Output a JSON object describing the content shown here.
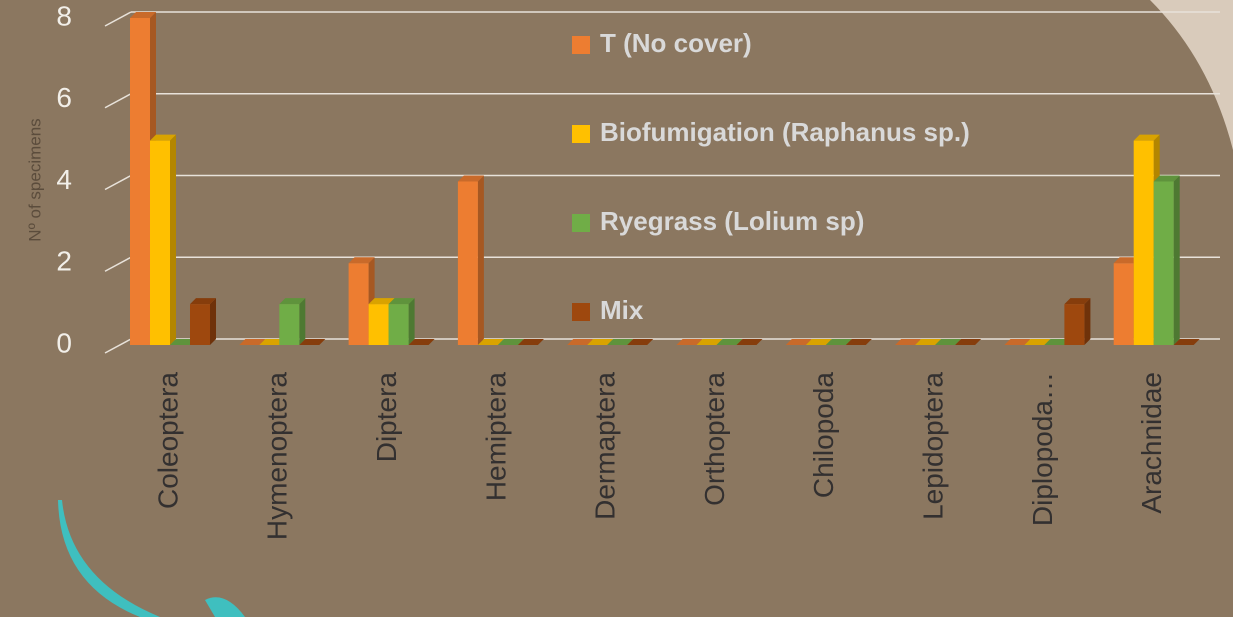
{
  "chart_data": {
    "type": "bar",
    "y_label": "Nº of specimens",
    "categories": [
      "Coleoptera",
      "Hymenoptera",
      "Diptera",
      "Hemiptera",
      "Dermaptera",
      "Orthoptera",
      "Chilopoda",
      "Lepidoptera",
      "Diplopoda…",
      "Arachnidae"
    ],
    "series": [
      {
        "name": "T (No cover)",
        "color": "#ed7d31",
        "values": [
          8,
          0,
          2,
          4,
          0,
          0,
          0,
          0,
          0,
          2
        ]
      },
      {
        "name": "Biofumigation (Raphanus sp.)",
        "color": "#ffc000",
        "values": [
          5,
          0,
          1,
          0,
          0,
          0,
          0,
          0,
          0,
          5
        ]
      },
      {
        "name": "Ryegrass (Lolium sp)",
        "color": "#70ad47",
        "values": [
          0,
          1,
          1,
          0,
          0,
          0,
          0,
          0,
          0,
          4
        ]
      },
      {
        "name": "Mix",
        "color": "#9e480e",
        "values": [
          1,
          0,
          0,
          0,
          0,
          0,
          0,
          0,
          1,
          0
        ]
      }
    ],
    "ylim": [
      0,
      8
    ],
    "yticks": [
      0,
      2,
      4,
      6,
      8
    ],
    "grid": true,
    "legend": "center"
  }
}
